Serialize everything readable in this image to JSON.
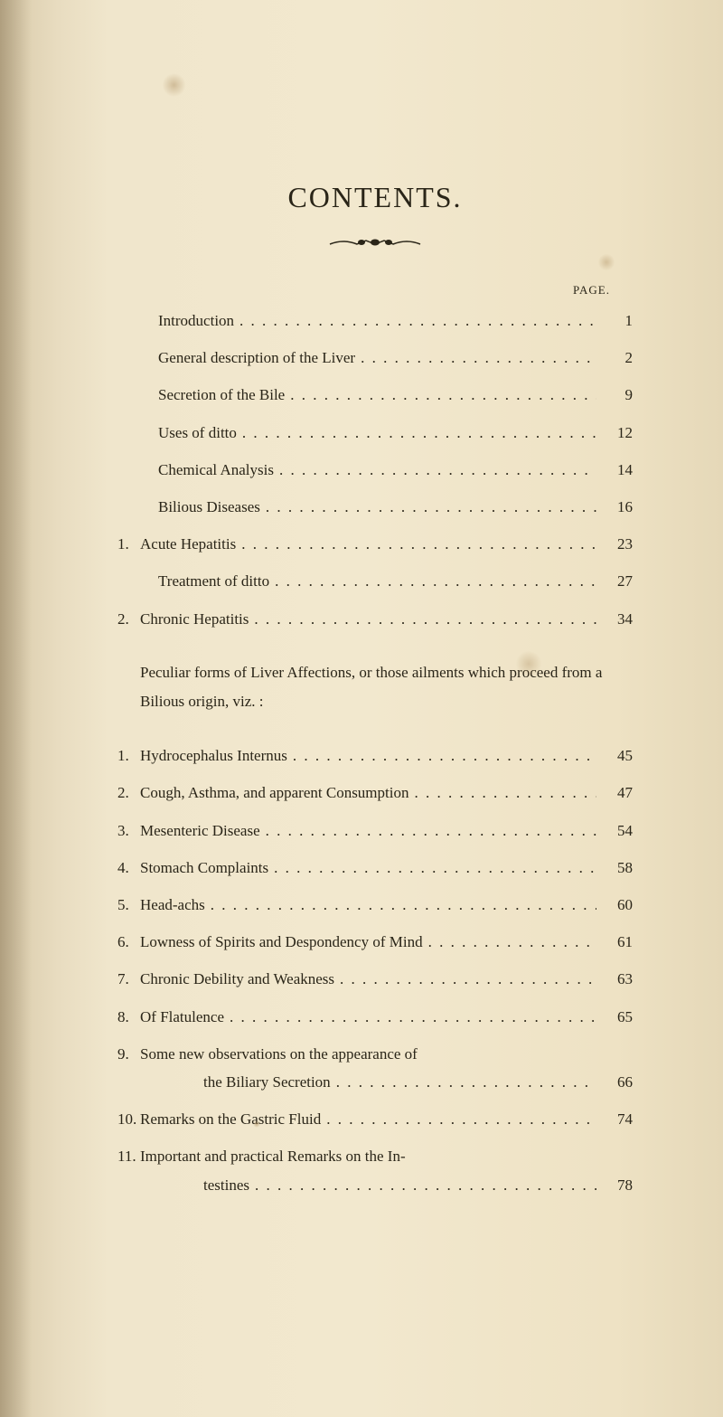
{
  "title": "CONTENTS.",
  "page_header": "PAGE.",
  "paragraph_text": "Peculiar forms of Liver Affections, or those ailments which proceed from a Bilious origin, viz. :",
  "entries": [
    {
      "num": "",
      "text": "Introduction",
      "page": "1",
      "indent": true
    },
    {
      "num": "",
      "text": "General description of the Liver",
      "page": "2",
      "indent": true
    },
    {
      "num": "",
      "text": "Secretion of the Bile",
      "page": "9",
      "indent": true
    },
    {
      "num": "",
      "text": "Uses of ditto",
      "page": "12",
      "indent": true
    },
    {
      "num": "",
      "text": "Chemical Analysis",
      "page": "14",
      "indent": true
    },
    {
      "num": "",
      "text": "Bilious Diseases",
      "page": "16",
      "indent": true
    },
    {
      "num": "1.",
      "text": "Acute Hepatitis",
      "page": "23",
      "indent": false
    },
    {
      "num": "",
      "text": "Treatment of ditto",
      "page": "27",
      "indent": true
    },
    {
      "num": "2.",
      "text": "Chronic Hepatitis",
      "page": "34",
      "indent": false
    }
  ],
  "entries2": [
    {
      "num": "1.",
      "text": "Hydrocephalus Internus",
      "page": "45"
    },
    {
      "num": "2.",
      "text": "Cough, Asthma, and apparent Consumption",
      "page": "47"
    },
    {
      "num": "3.",
      "text": "Mesenteric Disease",
      "page": "54"
    },
    {
      "num": "4.",
      "text": "Stomach Complaints",
      "page": "58"
    },
    {
      "num": "5.",
      "text": "Head-achs",
      "page": "60"
    },
    {
      "num": "6.",
      "text": "Lowness of Spirits and Despondency of Mind",
      "page": "61"
    },
    {
      "num": "7.",
      "text": "Chronic Debility and Weakness",
      "page": "63"
    },
    {
      "num": "8.",
      "text": "Of Flatulence",
      "page": "65"
    },
    {
      "num": "9.",
      "text": "Some new observations on the appearance of",
      "page": ""
    },
    {
      "num": "",
      "text": "the Biliary Secretion",
      "page": "66",
      "continuation": true
    },
    {
      "num": "10.",
      "text": "Remarks on the Gastric Fluid",
      "page": "74"
    },
    {
      "num": "11.",
      "text": "Important and practical Remarks on the In-",
      "page": ""
    },
    {
      "num": "",
      "text": "testines",
      "page": "78",
      "continuation": true
    }
  ],
  "dots": ". . . . . . . . . . . . . . . . . . . . . . . . . . . . . . . . . . . . . . . .",
  "colors": {
    "background": "#f0e6cc",
    "text": "#2a2518",
    "foxing": "#a07d4b"
  },
  "typography": {
    "title_fontsize": 32,
    "body_fontsize": 17,
    "header_fontsize": 13,
    "font_family": "Georgia, Times New Roman, serif"
  }
}
